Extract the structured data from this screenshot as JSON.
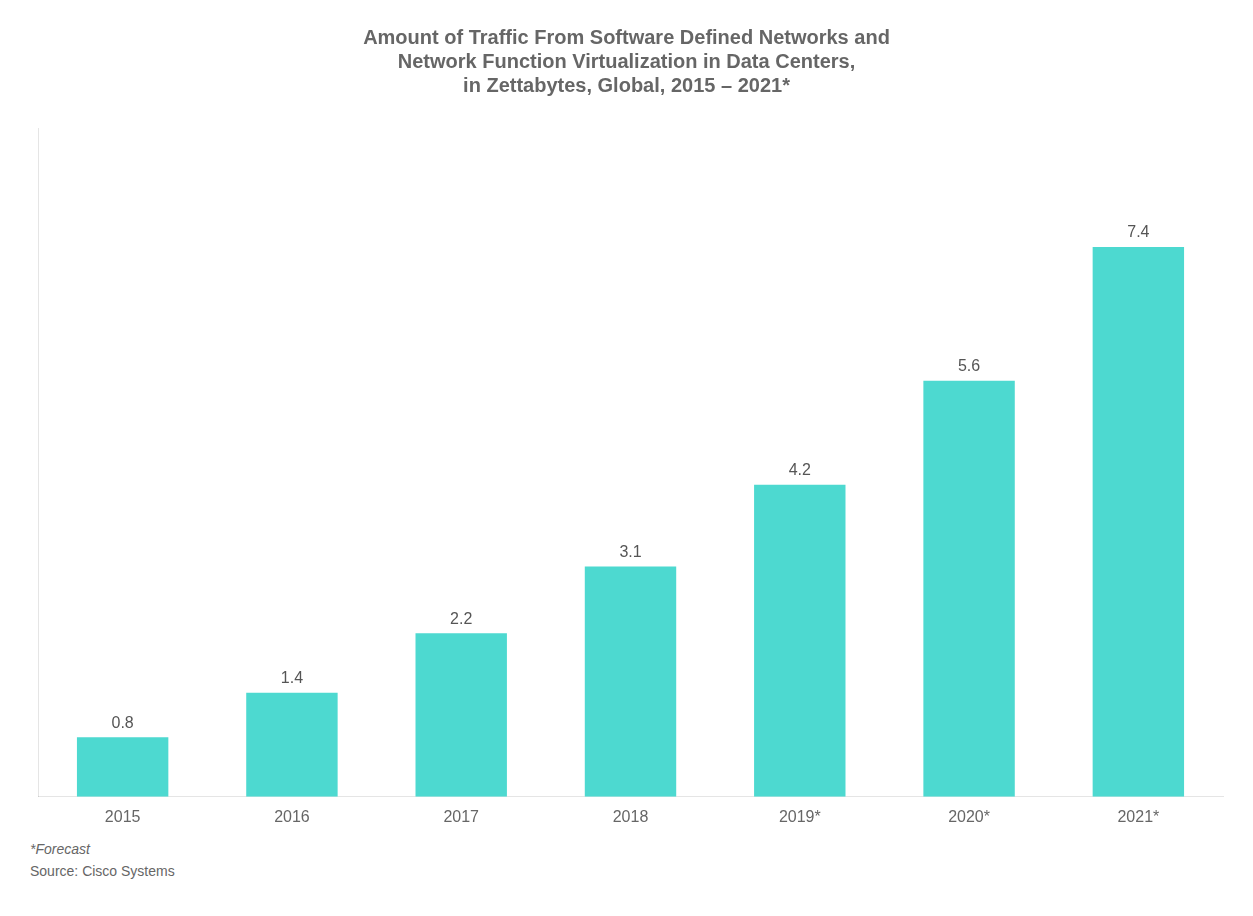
{
  "chart_data": {
    "type": "bar",
    "title": "Amount of Traffic From Software Defined Networks and\nNetwork Function Virtualization in Data Centers,\nin Zettabytes, Global, 2015 – 2021*",
    "categories": [
      "2015",
      "2016",
      "2017",
      "2018",
      "2019*",
      "2020*",
      "2021*"
    ],
    "values": [
      0.8,
      1.4,
      2.2,
      3.1,
      4.2,
      5.6,
      7.4
    ],
    "color": "#4DD9D0",
    "ylim": [
      0,
      9.0
    ],
    "yticks": [],
    "grid": false,
    "data_labels": true,
    "tick_labels": "x",
    "annotations": [
      "*Forecast",
      "Source: Cisco Systems"
    ]
  }
}
